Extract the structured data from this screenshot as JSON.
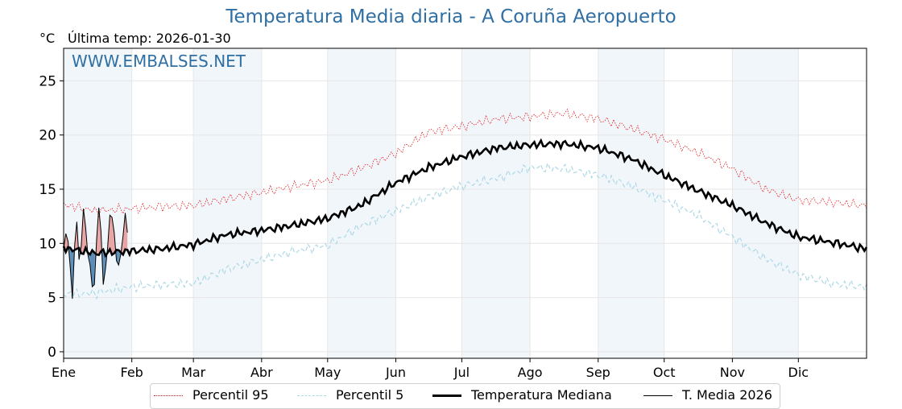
{
  "header": {
    "title": "Temperatura Media diaria - A Coruña Aeropuerto",
    "unit": "°C",
    "last_temp": "Última temp: 2026-01-30",
    "watermark": "WWW.EMBALSES.NET"
  },
  "colors": {
    "p95": "#e41a1c",
    "p5": "#add8e6",
    "median": "#000000",
    "current": "#000000",
    "above_fill": "#e8a3a3",
    "below_fill": "#5b8db8",
    "band_fill": "#f1f6fb",
    "title": "#2f6fa3"
  },
  "legend": [
    {
      "label": "Percentil 95",
      "style": "dotted",
      "color": "#e41a1c"
    },
    {
      "label": "Percentil 5",
      "style": "dashed",
      "color": "#add8e6"
    },
    {
      "label": "Temperatura Mediana",
      "style": "solid-thick",
      "color": "#000000"
    },
    {
      "label": "T. Media 2026",
      "style": "solid-thin",
      "color": "#000000"
    }
  ],
  "chart_data": {
    "type": "line",
    "xlim": [
      1,
      366
    ],
    "ylim": [
      -0.6,
      28
    ],
    "yticks": [
      0,
      5,
      10,
      15,
      20,
      25
    ],
    "grid": true,
    "months": [
      {
        "label": "Ene",
        "day": 1
      },
      {
        "label": "Feb",
        "day": 32
      },
      {
        "label": "Mar",
        "day": 60
      },
      {
        "label": "Abr",
        "day": 91
      },
      {
        "label": "May",
        "day": 121
      },
      {
        "label": "Jun",
        "day": 152
      },
      {
        "label": "Jul",
        "day": 182
      },
      {
        "label": "Ago",
        "day": 213
      },
      {
        "label": "Sep",
        "day": 244
      },
      {
        "label": "Oct",
        "day": 274
      },
      {
        "label": "Nov",
        "day": 305
      },
      {
        "label": "Dic",
        "day": 335
      }
    ],
    "series": [
      {
        "name": "Percentil 95",
        "x": [
          1,
          15,
          32,
          46,
          60,
          75,
          91,
          106,
          121,
          136,
          152,
          167,
          182,
          198,
          213,
          228,
          244,
          259,
          274,
          289,
          305,
          320,
          335,
          350,
          366
        ],
        "y": [
          13.6,
          13.0,
          13.2,
          13.4,
          13.5,
          14.1,
          14.7,
          15.3,
          15.8,
          16.9,
          18.3,
          20.3,
          20.8,
          21.5,
          21.7,
          22.0,
          21.5,
          20.6,
          19.6,
          18.4,
          16.9,
          15.0,
          14.0,
          13.8,
          13.5
        ]
      },
      {
        "name": "Percentil 5",
        "x": [
          1,
          15,
          32,
          46,
          60,
          75,
          91,
          106,
          121,
          136,
          152,
          167,
          182,
          198,
          213,
          228,
          244,
          259,
          274,
          289,
          305,
          320,
          335,
          350,
          366
        ],
        "y": [
          5.3,
          5.4,
          6.0,
          6.2,
          6.3,
          7.6,
          8.5,
          9.3,
          9.8,
          11.6,
          13.0,
          14.3,
          15.3,
          16.0,
          17.0,
          16.9,
          16.3,
          15.3,
          14.0,
          12.6,
          10.6,
          8.6,
          7.1,
          6.3,
          6.0
        ]
      },
      {
        "name": "Temperatura Mediana",
        "x": [
          1,
          15,
          32,
          46,
          60,
          75,
          91,
          106,
          121,
          136,
          152,
          167,
          182,
          198,
          213,
          228,
          244,
          259,
          274,
          289,
          305,
          320,
          335,
          350,
          366
        ],
        "y": [
          9.6,
          9.1,
          9.3,
          9.5,
          9.9,
          10.8,
          11.2,
          11.7,
          12.3,
          13.5,
          15.6,
          17.0,
          18.0,
          18.8,
          19.1,
          19.2,
          18.8,
          17.8,
          16.3,
          14.9,
          13.5,
          11.9,
          10.6,
          10.1,
          9.5
        ]
      },
      {
        "name": "T. Media 2026",
        "x": [
          1,
          2,
          3,
          4,
          5,
          6,
          7,
          8,
          9,
          10,
          11,
          12,
          13,
          14,
          15,
          16,
          17,
          18,
          19,
          20,
          21,
          22,
          23,
          24,
          25,
          26,
          27,
          28,
          29,
          30
        ],
        "y": [
          9.5,
          10.9,
          10.2,
          7.8,
          4.9,
          9.8,
          12.0,
          8.5,
          9.8,
          13.2,
          11.5,
          9.0,
          8.0,
          6.0,
          6.2,
          10.4,
          13.3,
          11.1,
          6.2,
          7.6,
          9.6,
          12.6,
          12.4,
          11.0,
          8.4,
          8.0,
          9.0,
          10.7,
          12.8,
          11.0
        ]
      }
    ]
  }
}
